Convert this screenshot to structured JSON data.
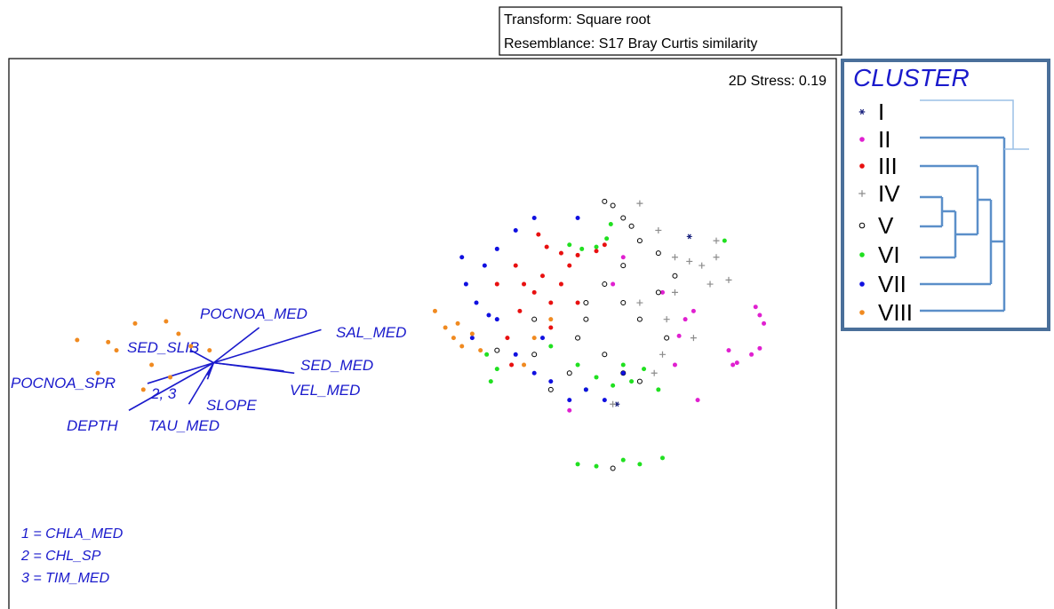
{
  "chart_data": {
    "type": "scatter",
    "header": [
      "Transform: Square root",
      "Resemblance: S17 Bray Curtis similarity"
    ],
    "stress": "2D Stress: 0.19",
    "legend_title": "CLUSTER",
    "xlim": [
      -2.0,
      2.0
    ],
    "ylim": [
      -1.33,
      1.33
    ],
    "series": [
      {
        "name": "I",
        "color": "#1a237e",
        "marker": "star",
        "x": [
          1.29,
          0.94
        ],
        "y": [
          0.47,
          -0.34
        ]
      },
      {
        "name": "II",
        "color": "#e020d0",
        "marker": "dot",
        "x": [
          1.61,
          1.63,
          1.65,
          1.59,
          1.52,
          1.48,
          1.5,
          1.27,
          1.31,
          1.24,
          0.71,
          1.16,
          0.97,
          0.92,
          1.22,
          1.63,
          1.33
        ],
        "y": [
          0.13,
          0.09,
          0.05,
          -0.1,
          -0.14,
          -0.08,
          -0.15,
          0.07,
          0.11,
          -0.01,
          -0.37,
          0.2,
          0.37,
          0.24,
          -0.15,
          -0.07,
          -0.32
        ]
      },
      {
        "name": "III",
        "color": "#e81010",
        "marker": "dot",
        "x": [
          0.56,
          0.6,
          0.67,
          0.75,
          0.84,
          0.88,
          0.45,
          0.49,
          0.54,
          0.58,
          0.62,
          0.67,
          0.71,
          0.54,
          0.47,
          0.75,
          0.36,
          0.43,
          0.62,
          0.41
        ],
        "y": [
          0.48,
          0.42,
          0.39,
          0.38,
          0.4,
          0.43,
          0.33,
          0.24,
          0.2,
          0.28,
          0.15,
          0.24,
          0.33,
          0.07,
          0.11,
          0.15,
          0.24,
          -0.15,
          0.03,
          -0.02
        ]
      },
      {
        "name": "IV",
        "color": "#8c8c8c",
        "marker": "plus",
        "x": [
          1.05,
          1.14,
          1.22,
          1.29,
          1.35,
          1.42,
          1.48,
          1.39,
          1.22,
          1.18,
          1.31,
          1.16,
          1.05,
          0.92,
          1.12,
          1.42
        ],
        "y": [
          0.63,
          0.5,
          0.37,
          0.35,
          0.33,
          0.37,
          0.26,
          0.24,
          0.2,
          0.07,
          -0.02,
          -0.1,
          0.15,
          -0.34,
          -0.19,
          0.45
        ]
      },
      {
        "name": "V",
        "color": "#000000",
        "marker": "circle",
        "x": [
          0.88,
          0.92,
          0.97,
          1.01,
          1.05,
          1.14,
          0.97,
          0.88,
          0.79,
          0.97,
          1.05,
          1.14,
          1.22,
          0.75,
          0.88,
          0.97,
          0.71,
          0.54,
          0.36,
          0.62,
          1.05,
          0.79,
          0.92,
          0.54,
          1.18
        ],
        "y": [
          0.64,
          0.62,
          0.56,
          0.52,
          0.45,
          0.39,
          0.33,
          0.24,
          0.15,
          0.15,
          0.07,
          0.2,
          0.28,
          -0.02,
          -0.1,
          -0.19,
          -0.19,
          -0.1,
          -0.08,
          -0.27,
          -0.23,
          0.07,
          -0.65,
          0.07,
          -0.02
        ]
      },
      {
        "name": "VI",
        "color": "#20e020",
        "marker": "dot",
        "x": [
          0.71,
          0.77,
          0.84,
          0.89,
          0.91,
          0.75,
          0.84,
          0.92,
          1.01,
          1.07,
          0.97,
          0.79,
          0.31,
          0.33,
          0.36,
          0.75,
          0.84,
          0.97,
          1.05,
          1.16,
          1.46,
          0.62,
          1.14
        ],
        "y": [
          0.43,
          0.41,
          0.42,
          0.46,
          0.53,
          -0.15,
          -0.21,
          -0.25,
          -0.23,
          -0.17,
          -0.15,
          -0.27,
          -0.1,
          -0.23,
          -0.17,
          -0.63,
          -0.64,
          -0.61,
          -0.63,
          -0.6,
          0.45,
          -0.06,
          -0.27
        ]
      },
      {
        "name": "VII",
        "color": "#1010e0",
        "marker": "dot",
        "x": [
          0.19,
          0.21,
          0.26,
          0.3,
          0.36,
          0.45,
          0.54,
          0.75,
          0.36,
          0.45,
          0.54,
          0.62,
          0.71,
          0.79,
          0.88,
          0.97,
          0.58,
          0.24,
          0.32
        ],
        "y": [
          0.37,
          0.24,
          0.15,
          0.33,
          0.41,
          0.5,
          0.56,
          0.56,
          0.07,
          -0.1,
          -0.19,
          -0.23,
          -0.32,
          -0.27,
          -0.32,
          -0.19,
          -0.02,
          -0.02,
          0.09
        ]
      },
      {
        "name": "VIII",
        "color": "#f08a20",
        "marker": "dot",
        "x": [
          -1.67,
          -1.52,
          -1.39,
          -1.24,
          -1.12,
          -1.31,
          -1.48,
          -1.57,
          -1.22,
          -1.03,
          -1.35,
          -1.18,
          0.06,
          0.11,
          0.15,
          0.19,
          0.24,
          0.28,
          0.17,
          0.54,
          0.49,
          0.62
        ],
        "y": [
          -0.03,
          -0.04,
          0.05,
          0.06,
          -0.06,
          -0.15,
          -0.08,
          -0.19,
          -0.21,
          -0.08,
          -0.27,
          0.0,
          0.11,
          0.03,
          -0.02,
          -0.06,
          0.0,
          -0.08,
          0.05,
          -0.02,
          -0.15,
          0.07
        ]
      }
    ],
    "vector_origin": [
      -1.01,
      -0.14
    ],
    "vector_color": "#1a1acc",
    "vectors": [
      {
        "label": "POCNOA_MED",
        "x": -0.79,
        "y": 0.03
      },
      {
        "label": "SAL_MED",
        "x": -0.49,
        "y": 0.02
      },
      {
        "label": "SED_SLIB",
        "x": -1.12,
        "y": -0.08
      },
      {
        "label": "SED_MED",
        "x": -0.67,
        "y": -0.18
      },
      {
        "label": "POCNOA_SPR",
        "x": -1.33,
        "y": -0.24
      },
      {
        "label": "VEL_MED",
        "x": -0.62,
        "y": -0.19
      },
      {
        "label": "2, 3",
        "x": -1.04,
        "y": -0.2
      },
      {
        "label": "SLOPE",
        "x": -1.04,
        "y": -0.22
      },
      {
        "label": "DEPTH",
        "x": -1.42,
        "y": -0.37
      },
      {
        "label": "TAU_MED",
        "x": -1.13,
        "y": -0.34
      }
    ],
    "key": [
      "1 = CHLA_MED",
      "2 = CHL_SP",
      "3 = TIM_MED"
    ]
  }
}
